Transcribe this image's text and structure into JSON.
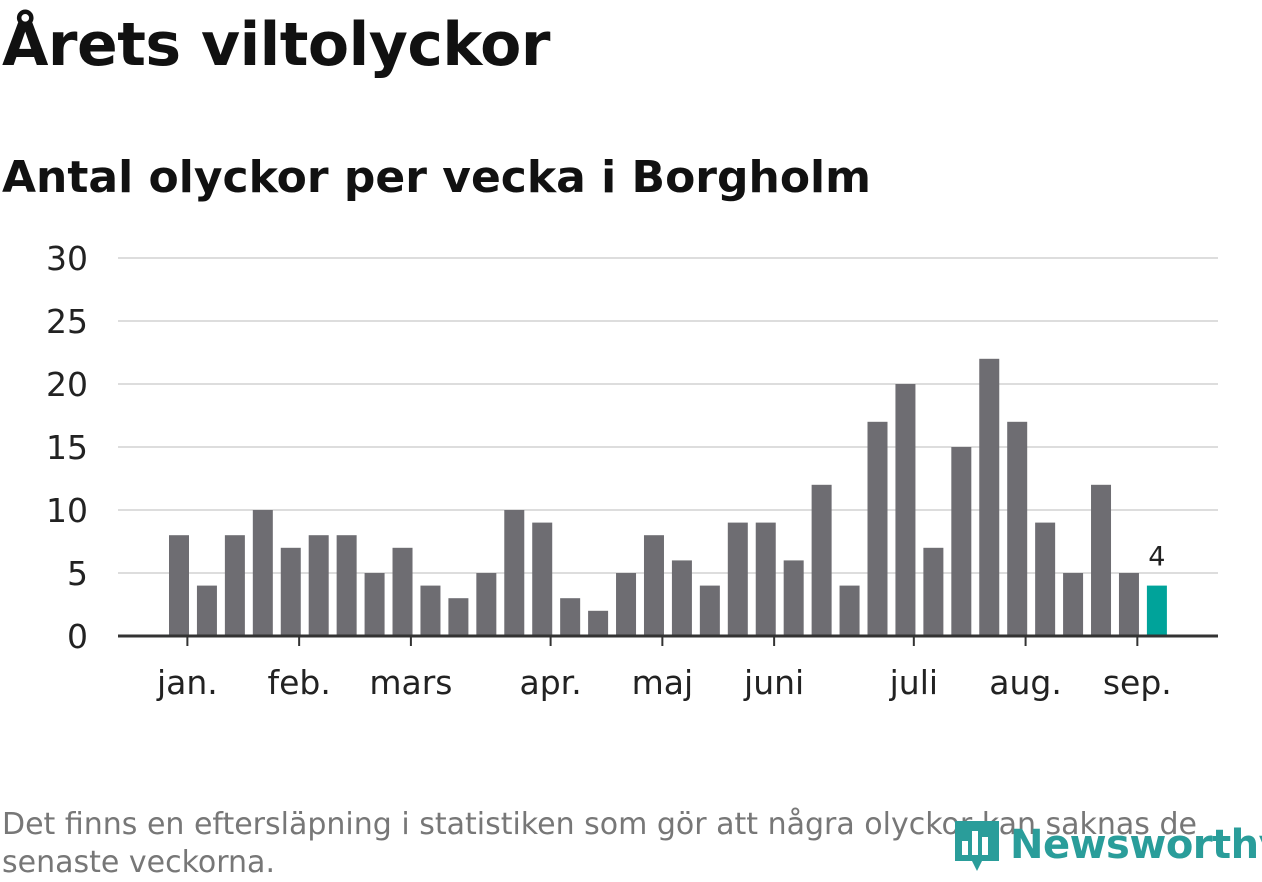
{
  "title": "Årets viltolyckor",
  "subtitle": "Antal olyckor per vecka i Borgholm",
  "footnote": "Det finns en eftersläpning i statistiken som gör att några olyckor kan saknas de senaste veckorna.",
  "logo": {
    "text": "Newsworthy",
    "icon": "newsworthy-logo-icon"
  },
  "colors": {
    "bar": "#6e6d72",
    "highlight": "#00a39a",
    "grid": "#dddddd",
    "axis": "#333333",
    "text": "#222222"
  },
  "chart_data": {
    "type": "bar",
    "title": "Antal olyckor per vecka i Borgholm",
    "ylim": [
      0,
      30
    ],
    "yticks": [
      0,
      5,
      10,
      15,
      20,
      25,
      30
    ],
    "grid": true,
    "values": [
      8,
      4,
      8,
      10,
      7,
      8,
      8,
      5,
      7,
      4,
      3,
      5,
      10,
      9,
      3,
      2,
      5,
      8,
      6,
      4,
      9,
      9,
      6,
      12,
      4,
      17,
      20,
      7,
      15,
      22,
      17,
      9,
      5,
      12,
      5,
      4
    ],
    "highlight_index": 35,
    "highlight_label": "4",
    "month_labels": [
      {
        "label": "jan.",
        "week": 0.3
      },
      {
        "label": "feb.",
        "week": 4.3
      },
      {
        "label": "mars",
        "week": 8.3
      },
      {
        "label": "apr.",
        "week": 13.3
      },
      {
        "label": "maj",
        "week": 17.3
      },
      {
        "label": "juni",
        "week": 21.3
      },
      {
        "label": "juli",
        "week": 26.3
      },
      {
        "label": "aug.",
        "week": 30.3
      },
      {
        "label": "sep.",
        "week": 34.3
      }
    ]
  }
}
